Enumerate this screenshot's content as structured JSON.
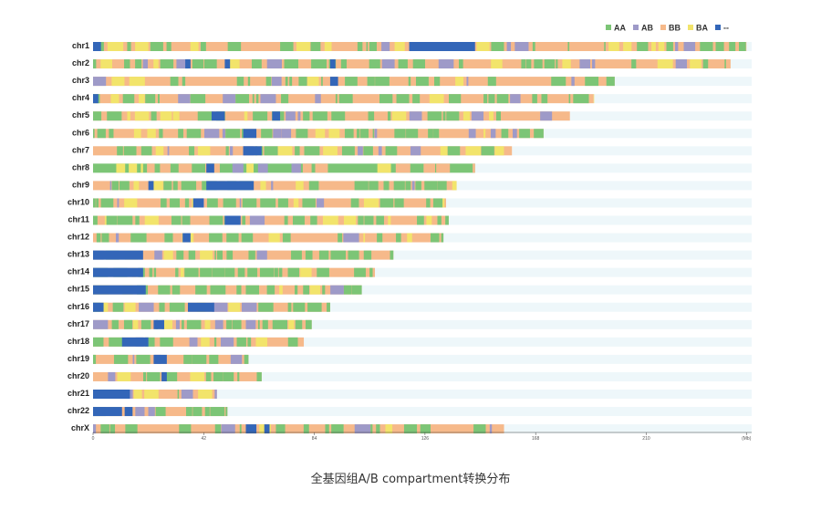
{
  "caption": "全基因组A/B compartment转换分布",
  "legend": [
    {
      "label": "AA",
      "color": "#7cc576"
    },
    {
      "label": "AB",
      "color": "#9e9ac8"
    },
    {
      "label": "BB",
      "color": "#f6b98a"
    },
    {
      "label": "BA",
      "color": "#f2e46b"
    },
    {
      "label": "--",
      "color": "#3366b8"
    }
  ],
  "colors": {
    "track_background": "#eef7fa",
    "axis": "#444444"
  },
  "chart_data": {
    "type": "heatmap",
    "xlim": [
      0,
      250
    ],
    "x_ticks": [
      "0",
      "42",
      "84",
      "126",
      "168",
      "210",
      "(Mb)"
    ],
    "x_tick_values": [
      0,
      42,
      84,
      126,
      168,
      210,
      248
    ],
    "chromosomes": [
      {
        "name": "chr1",
        "length": 248,
        "dominant": "BB",
        "blocks": [
          {
            "start": 0,
            "end": 3,
            "state": "--"
          },
          {
            "start": 120,
            "end": 145,
            "state": "--"
          }
        ]
      },
      {
        "name": "chr2",
        "length": 242,
        "dominant": "BB",
        "blocks": [
          {
            "start": 35,
            "end": 37,
            "state": "--"
          },
          {
            "start": 50,
            "end": 52,
            "state": "--"
          },
          {
            "start": 90,
            "end": 92,
            "state": "--"
          }
        ]
      },
      {
        "name": "chr3",
        "length": 198,
        "dominant": "BB",
        "blocks": [
          {
            "start": 90,
            "end": 93,
            "state": "--"
          }
        ]
      },
      {
        "name": "chr4",
        "length": 190,
        "dominant": "BB",
        "blocks": [
          {
            "start": 0,
            "end": 2,
            "state": "--"
          }
        ]
      },
      {
        "name": "chr5",
        "length": 181,
        "dominant": "BB",
        "blocks": [
          {
            "start": 45,
            "end": 50,
            "state": "--"
          },
          {
            "start": 68,
            "end": 71,
            "state": "--"
          }
        ]
      },
      {
        "name": "chr6",
        "length": 171,
        "dominant": "BB",
        "blocks": [
          {
            "start": 57,
            "end": 62,
            "state": "--"
          }
        ]
      },
      {
        "name": "chr7",
        "length": 159,
        "dominant": "BB",
        "blocks": [
          {
            "start": 57,
            "end": 64,
            "state": "--"
          }
        ]
      },
      {
        "name": "chr8",
        "length": 145,
        "dominant": "AA",
        "blocks": [
          {
            "start": 43,
            "end": 46,
            "state": "--"
          }
        ]
      },
      {
        "name": "chr9",
        "length": 138,
        "dominant": "BB",
        "blocks": [
          {
            "start": 21,
            "end": 23,
            "state": "--"
          },
          {
            "start": 43,
            "end": 61,
            "state": "--"
          }
        ]
      },
      {
        "name": "chr10",
        "length": 134,
        "dominant": "BB",
        "blocks": [
          {
            "start": 38,
            "end": 42,
            "state": "--"
          }
        ]
      },
      {
        "name": "chr11",
        "length": 135,
        "dominant": "BB",
        "blocks": [
          {
            "start": 50,
            "end": 56,
            "state": "--"
          }
        ]
      },
      {
        "name": "chr12",
        "length": 133,
        "dominant": "BB",
        "blocks": [
          {
            "start": 34,
            "end": 37,
            "state": "--"
          }
        ]
      },
      {
        "name": "chr13",
        "length": 114,
        "dominant": "BB",
        "blocks": [
          {
            "start": 0,
            "end": 19,
            "state": "--"
          }
        ]
      },
      {
        "name": "chr14",
        "length": 107,
        "dominant": "BB",
        "blocks": [
          {
            "start": 0,
            "end": 19,
            "state": "--"
          }
        ]
      },
      {
        "name": "chr15",
        "length": 102,
        "dominant": "BB",
        "blocks": [
          {
            "start": 0,
            "end": 20,
            "state": "--"
          }
        ]
      },
      {
        "name": "chr16",
        "length": 90,
        "dominant": "BB",
        "blocks": [
          {
            "start": 0,
            "end": 4,
            "state": "--"
          },
          {
            "start": 36,
            "end": 46,
            "state": "--"
          }
        ]
      },
      {
        "name": "chr17",
        "length": 83,
        "dominant": "BB",
        "blocks": [
          {
            "start": 23,
            "end": 27,
            "state": "--"
          }
        ]
      },
      {
        "name": "chr18",
        "length": 80,
        "dominant": "BB",
        "blocks": [
          {
            "start": 11,
            "end": 21,
            "state": "--"
          }
        ]
      },
      {
        "name": "chr19",
        "length": 59,
        "dominant": "BB",
        "blocks": [
          {
            "start": 23,
            "end": 28,
            "state": "--"
          }
        ]
      },
      {
        "name": "chr20",
        "length": 64,
        "dominant": "BB",
        "blocks": [
          {
            "start": 26,
            "end": 28,
            "state": "--"
          }
        ]
      },
      {
        "name": "chr21",
        "length": 47,
        "dominant": "BB",
        "blocks": [
          {
            "start": 0,
            "end": 14,
            "state": "--"
          }
        ]
      },
      {
        "name": "chr22",
        "length": 51,
        "dominant": "BB",
        "blocks": [
          {
            "start": 0,
            "end": 11,
            "state": "--"
          },
          {
            "start": 12,
            "end": 15,
            "state": "--"
          }
        ]
      },
      {
        "name": "chrX",
        "length": 156,
        "dominant": "BB",
        "blocks": [
          {
            "start": 58,
            "end": 62,
            "state": "--"
          },
          {
            "start": 65,
            "end": 67,
            "state": "--"
          }
        ]
      }
    ]
  }
}
